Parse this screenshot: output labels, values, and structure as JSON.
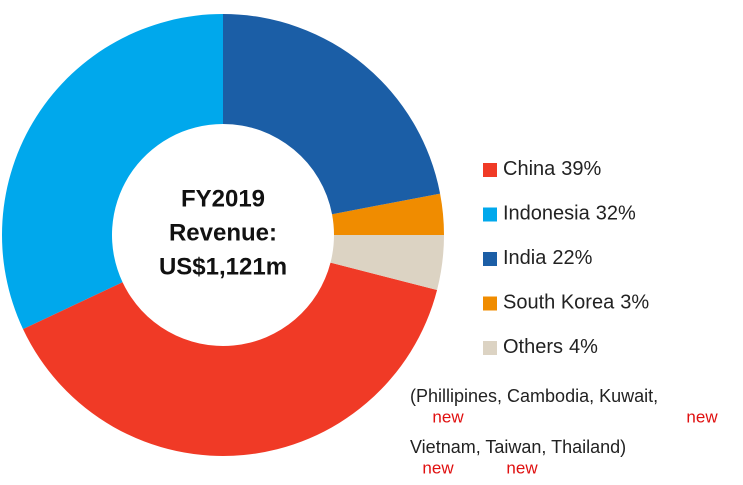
{
  "chart_data": {
    "type": "pie",
    "center_text": [
      "FY2019",
      "Revenue:",
      "US$1,121m"
    ],
    "categories": [
      "China",
      "Indonesia",
      "India",
      "South Korea",
      "Others"
    ],
    "values": [
      39,
      32,
      22,
      3,
      4
    ],
    "value_labels": [
      "39%",
      "32%",
      "22%",
      "3%",
      "4%"
    ],
    "colors": [
      "#f03a26",
      "#00a8ec",
      "#1b5ea6",
      "#f08c00",
      "#dcd3c3"
    ],
    "legend": "right",
    "note_lines": [
      "(Phillipines, Cambodia, Kuwait,",
      "Vietnam, Taiwan, Thailand)"
    ],
    "new_tags": [
      "new",
      "new",
      "new",
      "new"
    ]
  }
}
